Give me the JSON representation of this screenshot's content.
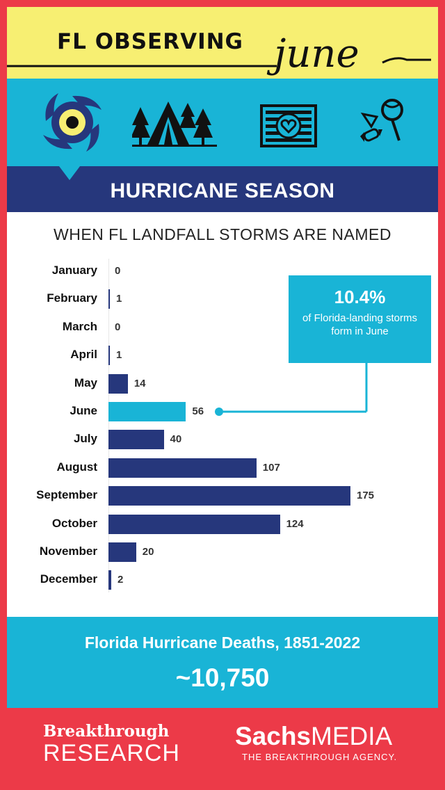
{
  "header": {
    "title": "FL OBSERVING",
    "script_word": "june"
  },
  "icons": [
    {
      "name": "hurricane-icon",
      "color": "#26377c",
      "eye_color": "#f7ef72"
    },
    {
      "name": "campsite-icon"
    },
    {
      "name": "flag-heart-icon"
    },
    {
      "name": "candy-icon"
    }
  ],
  "section": {
    "title": "HURRICANE SEASON"
  },
  "chart_data": {
    "type": "bar",
    "orientation": "horizontal",
    "title": "WHEN FL LANDFALL STORMS ARE  NAMED",
    "categories": [
      "January",
      "February",
      "March",
      "April",
      "May",
      "June",
      "July",
      "August",
      "September",
      "October",
      "November",
      "December"
    ],
    "values": [
      0,
      1,
      0,
      1,
      14,
      56,
      40,
      107,
      175,
      124,
      20,
      2
    ],
    "highlight_category": "June",
    "bar_color": "#26377c",
    "highlight_color": "#19b4d6",
    "xlim": [
      0,
      175
    ],
    "grid": false
  },
  "callout": {
    "percent": "10.4%",
    "text": "of Florida-landing storms form in June"
  },
  "footer_stat": {
    "title": "Florida Hurricane Deaths, 1851-2022",
    "value": "~10,750"
  },
  "logos": {
    "left_line1": "Breakthrough",
    "left_line2": "RESEARCH",
    "right_bold": "Sachs",
    "right_light": "MEDIA",
    "right_tagline": "THE BREAKTHROUGH AGENCY."
  },
  "colors": {
    "frame": "#ec3a48",
    "yellow": "#f7ef72",
    "cyan": "#19b4d6",
    "navy": "#26377c"
  }
}
